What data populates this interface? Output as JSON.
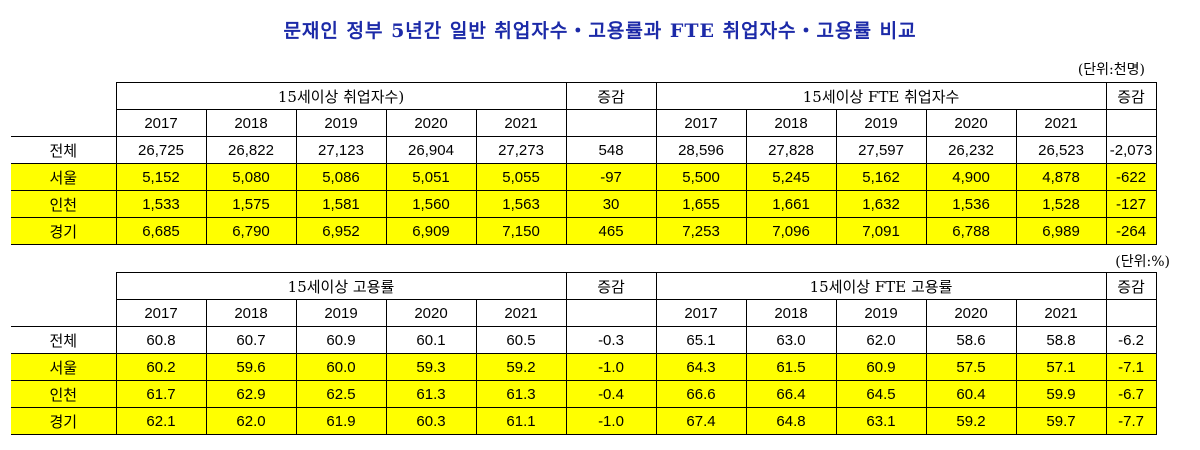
{
  "title": "문재인 정부 5년간 일반 취업자수・고용률과 FTE 취업자수・고용률 비교",
  "employment": {
    "unit": "(단위:천명)",
    "group_left": "15세이상 취업자수)",
    "group_right": "15세이상 FTE 취업자수",
    "change_label": "증감",
    "years": [
      "2017",
      "2018",
      "2019",
      "2020",
      "2021"
    ],
    "rows": [
      {
        "region": "전체",
        "highlight": false,
        "general": [
          "26,725",
          "26,822",
          "27,123",
          "26,904",
          "27,273"
        ],
        "general_change": "548",
        "fte": [
          "28,596",
          "27,828",
          "27,597",
          "26,232",
          "26,523"
        ],
        "fte_change": "-2,073"
      },
      {
        "region": "서울",
        "highlight": true,
        "general": [
          "5,152",
          "5,080",
          "5,086",
          "5,051",
          "5,055"
        ],
        "general_change": "-97",
        "fte": [
          "5,500",
          "5,245",
          "5,162",
          "4,900",
          "4,878"
        ],
        "fte_change": "-622"
      },
      {
        "region": "인천",
        "highlight": true,
        "general": [
          "1,533",
          "1,575",
          "1,581",
          "1,560",
          "1,563"
        ],
        "general_change": "30",
        "fte": [
          "1,655",
          "1,661",
          "1,632",
          "1,536",
          "1,528"
        ],
        "fte_change": "-127"
      },
      {
        "region": "경기",
        "highlight": true,
        "general": [
          "6,685",
          "6,790",
          "6,952",
          "6,909",
          "7,150"
        ],
        "general_change": "465",
        "fte": [
          "7,253",
          "7,096",
          "7,091",
          "6,788",
          "6,989"
        ],
        "fte_change": "-264"
      }
    ]
  },
  "rate": {
    "unit": "(단위:%)",
    "group_left": "15세이상 고용률",
    "group_right": "15세이상 FTE 고용률",
    "change_label": "증감",
    "years": [
      "2017",
      "2018",
      "2019",
      "2020",
      "2021"
    ],
    "rows": [
      {
        "region": "전체",
        "highlight": false,
        "general": [
          "60.8",
          "60.7",
          "60.9",
          "60.1",
          "60.5"
        ],
        "general_change": "-0.3",
        "fte": [
          "65.1",
          "63.0",
          "62.0",
          "58.6",
          "58.8"
        ],
        "fte_change": "-6.2"
      },
      {
        "region": "서울",
        "highlight": true,
        "general": [
          "60.2",
          "59.6",
          "60.0",
          "59.3",
          "59.2"
        ],
        "general_change": "-1.0",
        "fte": [
          "64.3",
          "61.5",
          "60.9",
          "57.5",
          "57.1"
        ],
        "fte_change": "-7.1"
      },
      {
        "region": "인천",
        "highlight": true,
        "general": [
          "61.7",
          "62.9",
          "62.5",
          "61.3",
          "61.3"
        ],
        "general_change": "-0.4",
        "fte": [
          "66.6",
          "66.4",
          "64.5",
          "60.4",
          "59.9"
        ],
        "fte_change": "-6.7"
      },
      {
        "region": "경기",
        "highlight": true,
        "general": [
          "62.1",
          "62.0",
          "61.9",
          "60.3",
          "61.1"
        ],
        "general_change": "-1.0",
        "fte": [
          "67.4",
          "64.8",
          "63.1",
          "59.2",
          "59.7"
        ],
        "fte_change": "-7.7"
      }
    ]
  }
}
